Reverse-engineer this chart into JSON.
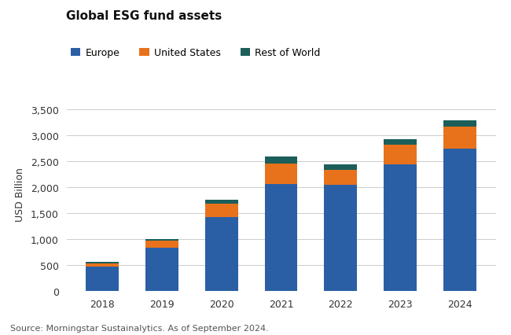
{
  "title": "Global ESG fund assets",
  "ylabel": "USD Billion",
  "source": "Source: Morningstar Sustainalytics. As of September 2024.",
  "years": [
    "2018",
    "2019",
    "2020",
    "2021",
    "2022",
    "2023",
    "2024"
  ],
  "europe": [
    470,
    840,
    1430,
    2060,
    2050,
    2450,
    2750
  ],
  "united_states": [
    70,
    130,
    260,
    400,
    295,
    370,
    415
  ],
  "rest_of_world": [
    35,
    40,
    70,
    140,
    105,
    115,
    125
  ],
  "colors": {
    "europe": "#2B5FA5",
    "united_states": "#E8721C",
    "rest_of_world": "#1B5E5A"
  },
  "ylim": [
    0,
    3750
  ],
  "yticks": [
    0,
    500,
    1000,
    1500,
    2000,
    2500,
    3000,
    3500
  ],
  "background_color": "#FFFFFF",
  "grid_color": "#CCCCCC",
  "title_fontsize": 11,
  "legend_fontsize": 9,
  "tick_fontsize": 9,
  "source_fontsize": 8,
  "bar_width": 0.55
}
